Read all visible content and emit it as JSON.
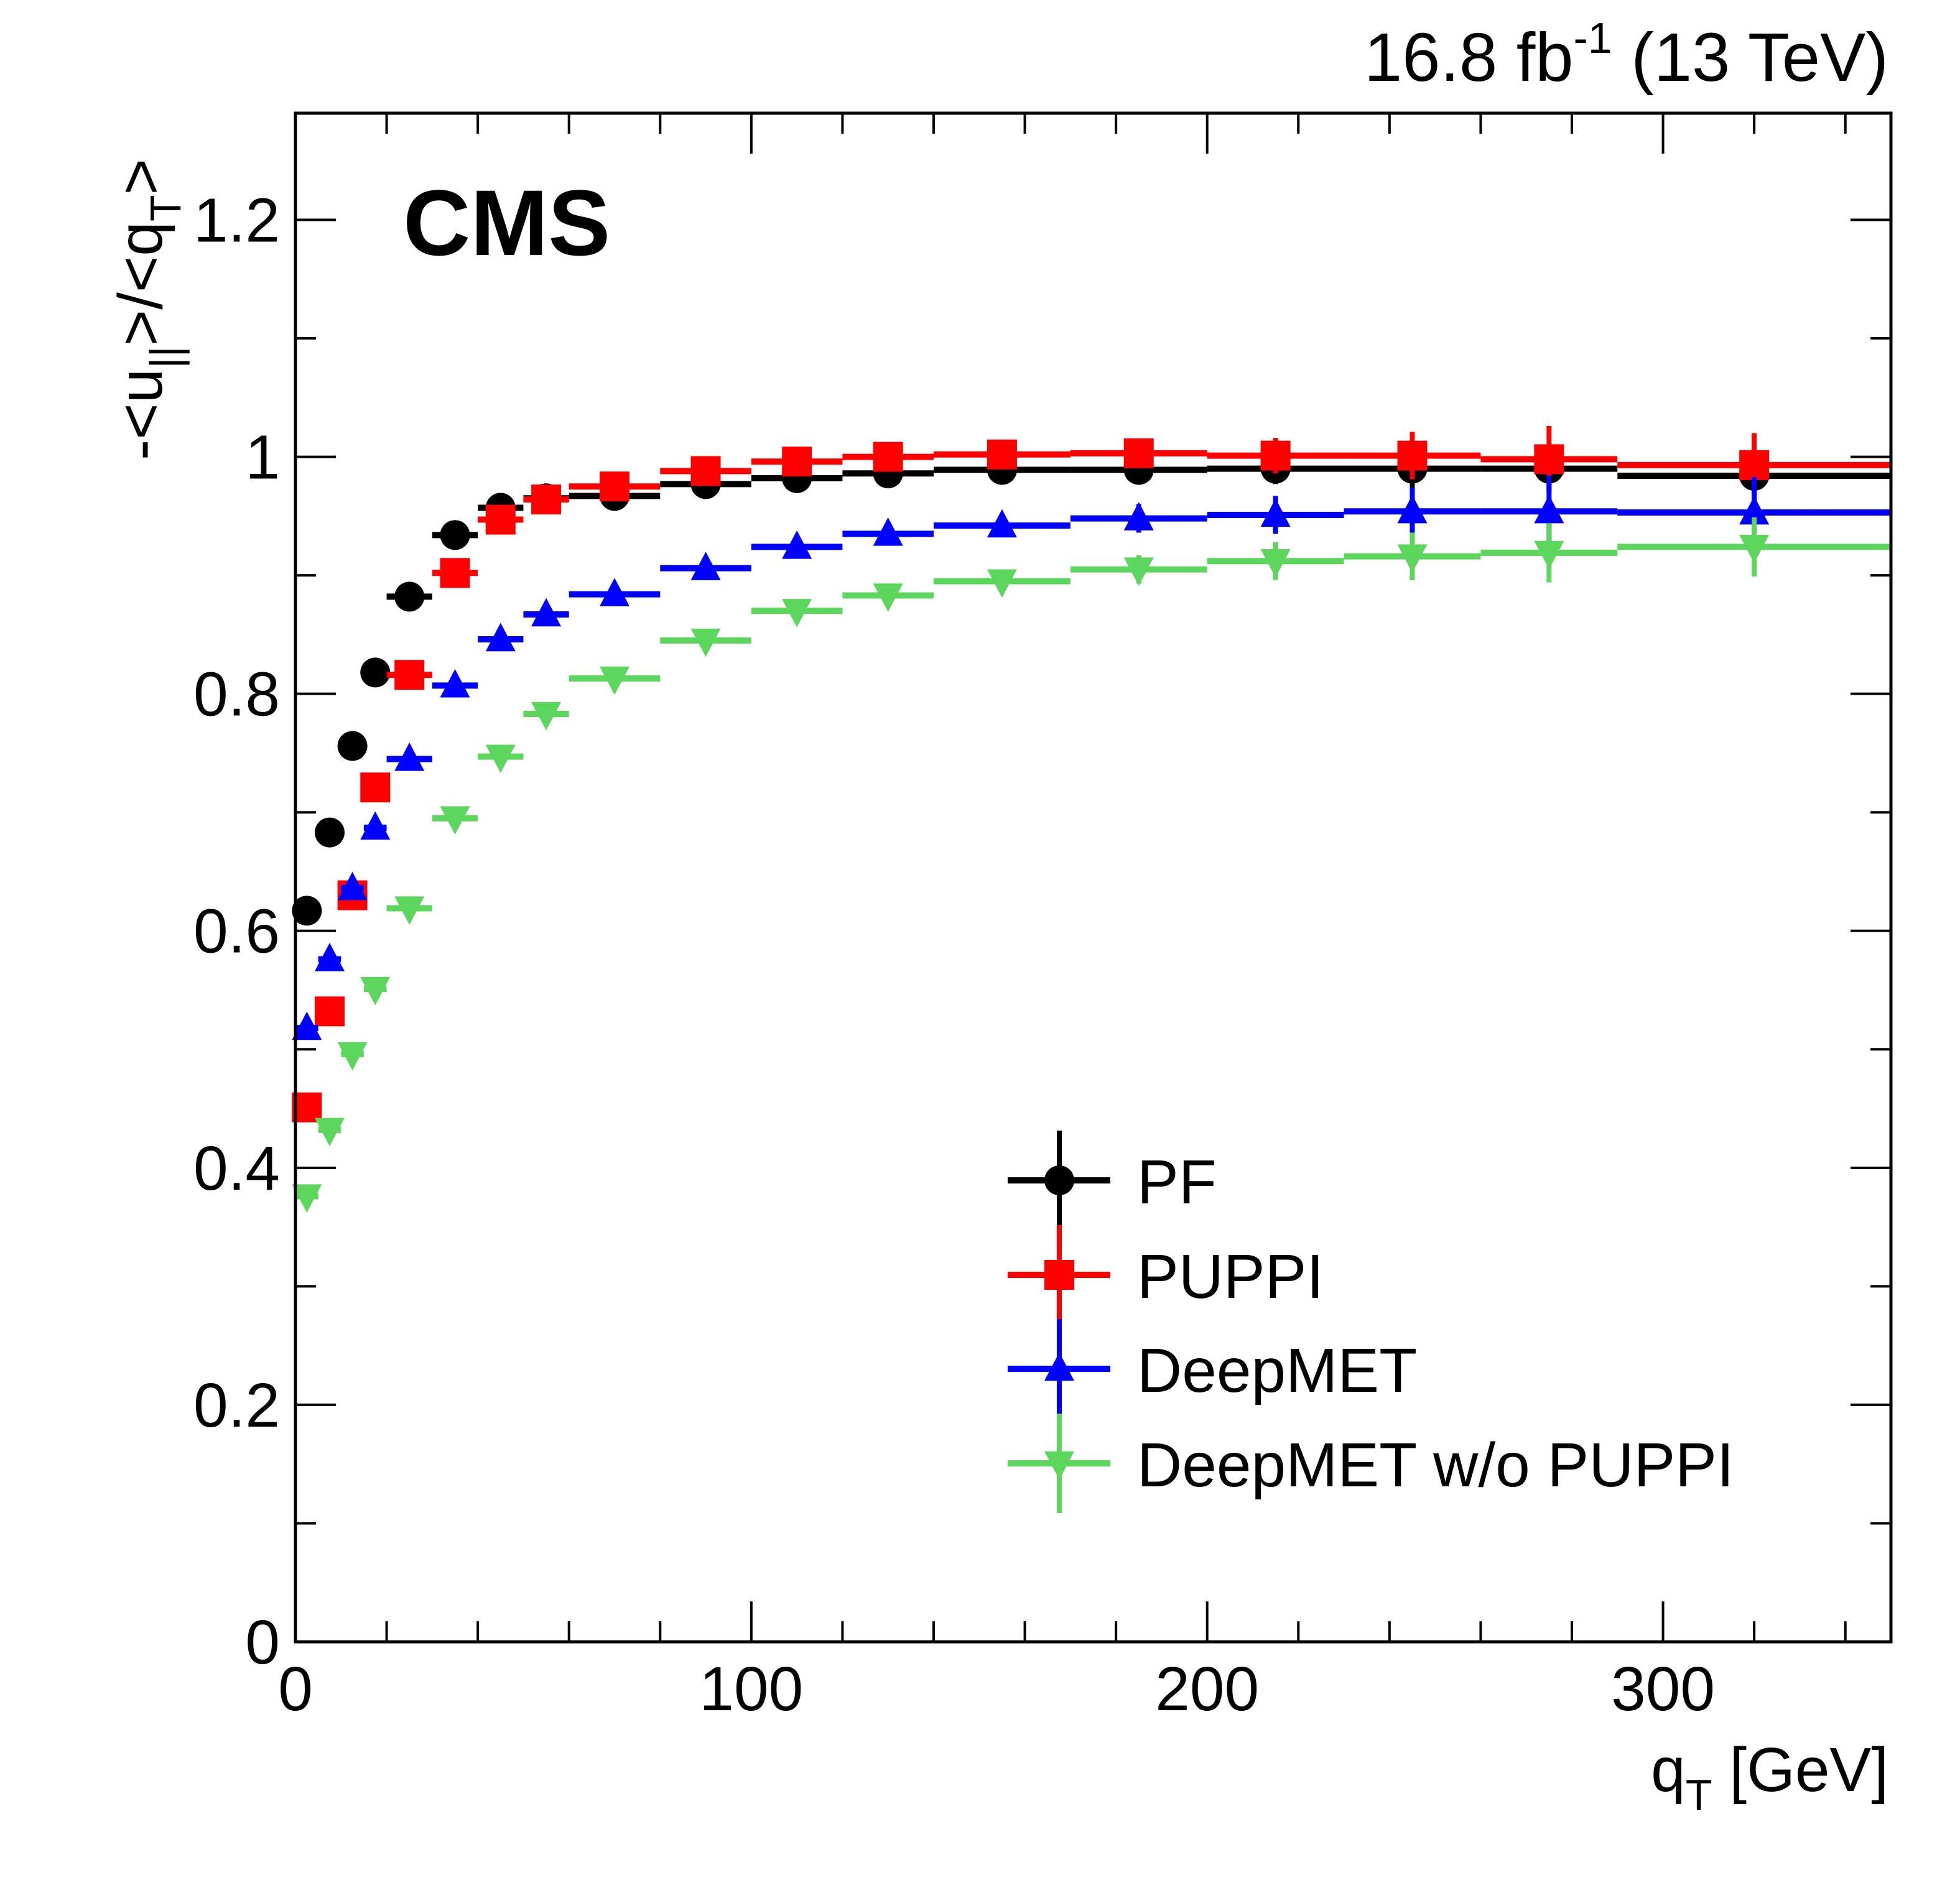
{
  "chart_data": {
    "type": "scatter",
    "title": "",
    "lumi_label": "16.8 fb",
    "lumi_sup": "-1",
    "energy_label": " (13 TeV)",
    "experiment_label": "CMS",
    "xlabel": "q",
    "xlabel_sub": "T",
    "xlabel_unit": " [GeV]",
    "ylabel_parts": [
      "-<u",
      "||",
      ">/<q",
      "T",
      ">"
    ],
    "xlim": [
      0,
      350
    ],
    "ylim": [
      0,
      1.29
    ],
    "x_ticks": [
      "0",
      "100",
      "200",
      "300"
    ],
    "x_tick_values": [
      0,
      100,
      200,
      300
    ],
    "y_ticks": [
      "0",
      "0.2",
      "0.4",
      "0.6",
      "0.8",
      "1",
      "1.2"
    ],
    "y_tick_values": [
      0,
      0.2,
      0.4,
      0.6,
      0.8,
      1.0,
      1.2
    ],
    "legend_position": "bottom-right",
    "bin_edges": [
      0,
      5,
      10,
      15,
      20,
      30,
      40,
      50,
      60,
      80,
      100,
      120,
      140,
      170,
      200,
      230,
      260,
      290,
      350
    ],
    "series": [
      {
        "name": "PF",
        "color": "#000000",
        "marker": "circle",
        "values": [
          0.617,
          0.683,
          0.756,
          0.818,
          0.882,
          0.934,
          0.957,
          0.965,
          0.967,
          0.977,
          0.982,
          0.986,
          0.989,
          0.989,
          0.99,
          0.99,
          0.99,
          0.984
        ],
        "errors": [
          0.003,
          0.003,
          0.003,
          0.003,
          0.003,
          0.003,
          0.003,
          0.003,
          0.003,
          0.004,
          0.005,
          0.006,
          0.007,
          0.01,
          0.013,
          0.016,
          0.02,
          0.02
        ]
      },
      {
        "name": "PUPPI",
        "color": "#ff0000",
        "marker": "square",
        "values": [
          0.451,
          0.532,
          0.63,
          0.721,
          0.816,
          0.902,
          0.947,
          0.964,
          0.975,
          0.988,
          0.996,
          1.0,
          1.002,
          1.003,
          1.001,
          1.001,
          0.998,
          0.993
        ],
        "errors": [
          0.004,
          0.004,
          0.004,
          0.004,
          0.004,
          0.004,
          0.004,
          0.004,
          0.004,
          0.005,
          0.006,
          0.007,
          0.008,
          0.011,
          0.015,
          0.02,
          0.028,
          0.027
        ]
      },
      {
        "name": "DeepMET",
        "color": "#0000ff",
        "marker": "triangle-up",
        "values": [
          0.518,
          0.576,
          0.636,
          0.687,
          0.745,
          0.807,
          0.846,
          0.867,
          0.884,
          0.906,
          0.924,
          0.935,
          0.942,
          0.948,
          0.951,
          0.954,
          0.954,
          0.953
        ],
        "errors": [
          0.006,
          0.006,
          0.006,
          0.006,
          0.004,
          0.004,
          0.004,
          0.004,
          0.004,
          0.005,
          0.006,
          0.007,
          0.008,
          0.012,
          0.016,
          0.02,
          0.03,
          0.03
        ]
      },
      {
        "name": "DeepMET w/o PUPPI",
        "color": "#5cd65c",
        "marker": "triangle-down",
        "values": [
          0.376,
          0.432,
          0.496,
          0.551,
          0.619,
          0.695,
          0.747,
          0.783,
          0.813,
          0.845,
          0.87,
          0.883,
          0.895,
          0.905,
          0.912,
          0.916,
          0.919,
          0.924
        ],
        "errors": [
          0.006,
          0.006,
          0.006,
          0.006,
          0.004,
          0.004,
          0.004,
          0.004,
          0.004,
          0.005,
          0.006,
          0.007,
          0.008,
          0.012,
          0.016,
          0.02,
          0.025,
          0.025
        ]
      }
    ]
  }
}
